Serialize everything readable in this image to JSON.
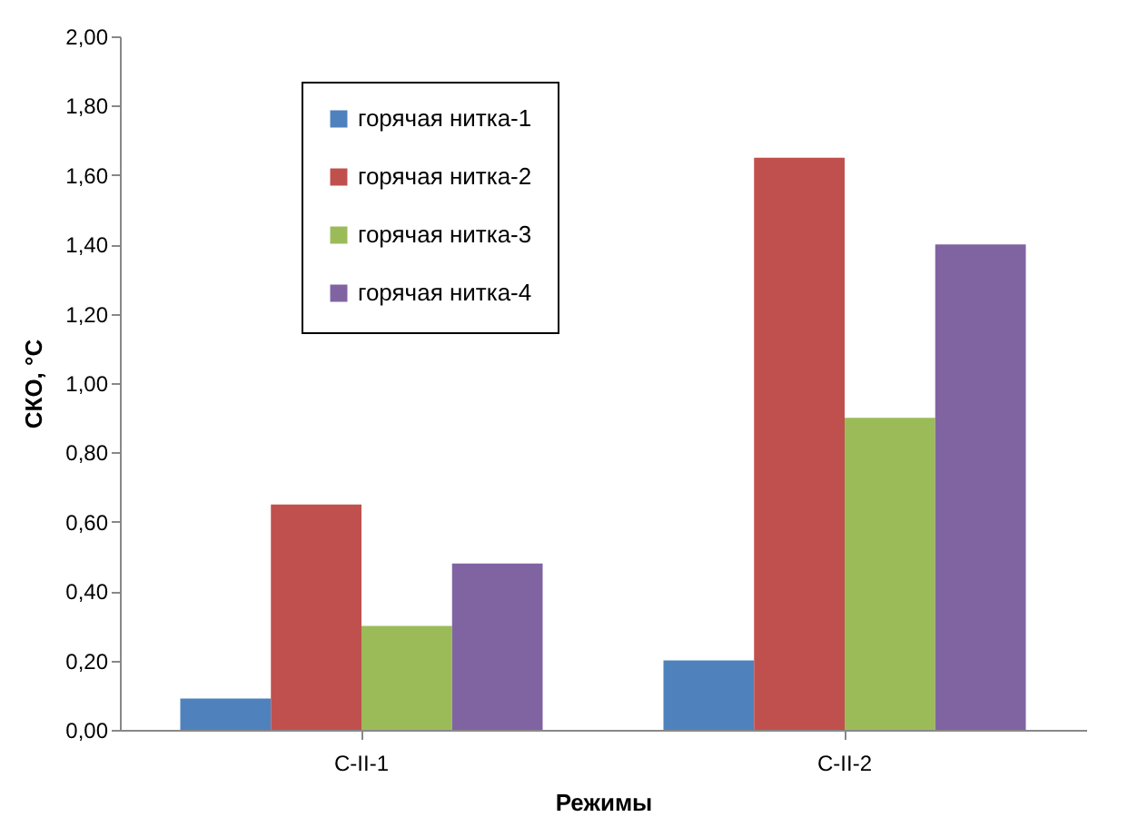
{
  "chart_data": {
    "type": "bar",
    "xlabel": "Режимы",
    "ylabel": "СКО, °С",
    "categories": [
      "С-II-1",
      "С-II-2"
    ],
    "series": [
      {
        "name": "горячая нитка-1",
        "color": "#4f81bd",
        "values": [
          0.09,
          0.2
        ]
      },
      {
        "name": "горячая нитка-2",
        "color": "#c0504d",
        "values": [
          0.65,
          1.65
        ]
      },
      {
        "name": "горячая нитка-3",
        "color": "#9bbb59",
        "values": [
          0.3,
          0.9
        ]
      },
      {
        "name": "горячая нитка-4",
        "color": "#8064a2",
        "values": [
          0.48,
          1.4
        ]
      }
    ],
    "ylim": [
      0,
      2
    ],
    "yticks": [
      {
        "value": 0,
        "label": "0,00"
      },
      {
        "value": 0.2,
        "label": "0,20"
      },
      {
        "value": 0.4,
        "label": "0,40"
      },
      {
        "value": 0.6,
        "label": "0,60"
      },
      {
        "value": 0.8,
        "label": "0,80"
      },
      {
        "value": 1,
        "label": "1,00"
      },
      {
        "value": 1.2,
        "label": "1,20"
      },
      {
        "value": 1.4,
        "label": "1,40"
      },
      {
        "value": 1.6,
        "label": "1,60"
      },
      {
        "value": 1.8,
        "label": "1,80"
      },
      {
        "value": 2,
        "label": "2,00"
      }
    ],
    "grid": false,
    "legend": "top left"
  }
}
